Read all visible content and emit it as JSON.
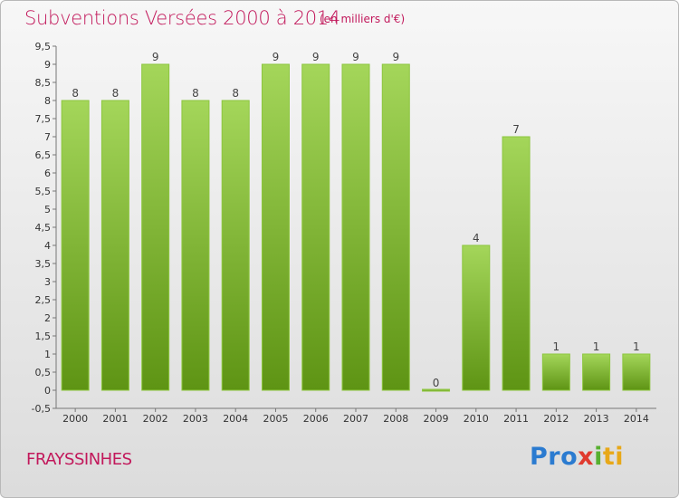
{
  "header": {
    "title": "Subventions Versées 2000 à 2014",
    "subtitle": "(en milliers d'€)"
  },
  "footer": {
    "commune": "FRAYSSINHES",
    "logo_parts": [
      "Pro",
      "x",
      "i",
      "ti"
    ]
  },
  "colors": {
    "title": "#c2185b",
    "bar_top": "#a4d65a",
    "bar_bottom": "#5e9414",
    "logo_blue": "#2b7bd0",
    "logo_orange": "#e8a818",
    "logo_green": "#57b030",
    "logo_red": "#e03a2e"
  },
  "chart_data": {
    "type": "bar",
    "categories": [
      "2000",
      "2001",
      "2002",
      "2003",
      "2004",
      "2005",
      "2006",
      "2007",
      "2008",
      "2009",
      "2010",
      "2011",
      "2012",
      "2013",
      "2014"
    ],
    "values": [
      8,
      8,
      9,
      8,
      8,
      9,
      9,
      9,
      9,
      0,
      4,
      7,
      1,
      1,
      1
    ],
    "data_labels": [
      "8",
      "8",
      "9",
      "8",
      "8",
      "9",
      "9",
      "9",
      "9",
      "0",
      "4",
      "7",
      "1",
      "1",
      "1"
    ],
    "ylim": [
      -0.5,
      9.5
    ],
    "yticks": [
      -0.5,
      0,
      0.5,
      1,
      1.5,
      2,
      2.5,
      3,
      3.5,
      4,
      4.5,
      5,
      5.5,
      6,
      6.5,
      7,
      7.5,
      8,
      8.5,
      9,
      9.5
    ],
    "ytick_labels": [
      "-0,5",
      "0",
      "0,5",
      "1",
      "1,5",
      "2",
      "2,5",
      "3",
      "3,5",
      "4",
      "4,5",
      "5",
      "5,5",
      "6",
      "6,5",
      "7",
      "7,5",
      "8",
      "8,5",
      "9",
      "9,5"
    ],
    "grid": false,
    "legend": "none"
  }
}
